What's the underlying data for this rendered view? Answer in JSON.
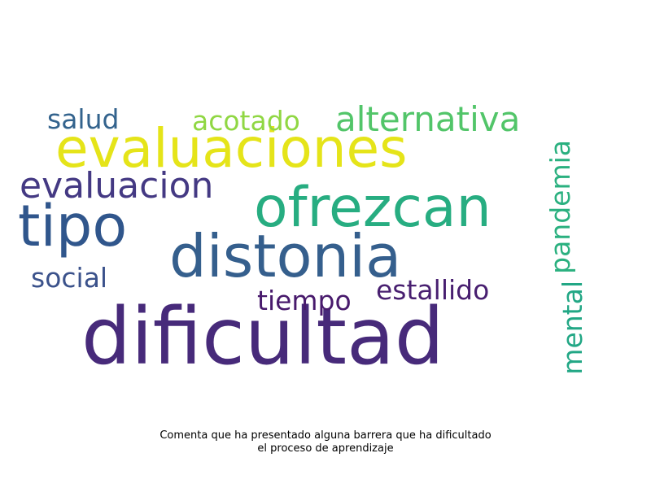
{
  "chart_data": {
    "type": "wordcloud",
    "title": "",
    "caption_lines": [
      "Comenta que ha presentado alguna barrera que ha dificultado",
      "el proceso de aprendizaje"
    ],
    "words": [
      {
        "text": "dificultad",
        "weight": 1.0,
        "color": "#472a7a"
      },
      {
        "text": "distonia",
        "weight": 0.78,
        "color": "#355f8d"
      },
      {
        "text": "tipo",
        "weight": 0.77,
        "color": "#30568c"
      },
      {
        "text": "ofrezcan",
        "weight": 0.75,
        "color": "#27ad81"
      },
      {
        "text": "evaluaciones",
        "weight": 0.73,
        "color": "#e5e419"
      },
      {
        "text": "evaluacion",
        "weight": 0.53,
        "color": "#443983"
      },
      {
        "text": "alternativa",
        "weight": 0.5,
        "color": "#52c569"
      },
      {
        "text": "pandemia",
        "weight": 0.4,
        "color": "#2ab07f"
      },
      {
        "text": "mental",
        "weight": 0.4,
        "color": "#22a785"
      },
      {
        "text": "estallido",
        "weight": 0.4,
        "color": "#481f70"
      },
      {
        "text": "acotado",
        "weight": 0.4,
        "color": "#90d743"
      },
      {
        "text": "salud",
        "weight": 0.4,
        "color": "#33638d"
      },
      {
        "text": "social",
        "weight": 0.4,
        "color": "#3b528b"
      },
      {
        "text": "tiempo",
        "weight": 0.4,
        "color": "#481a6c"
      }
    ],
    "background": "#ffffff"
  }
}
